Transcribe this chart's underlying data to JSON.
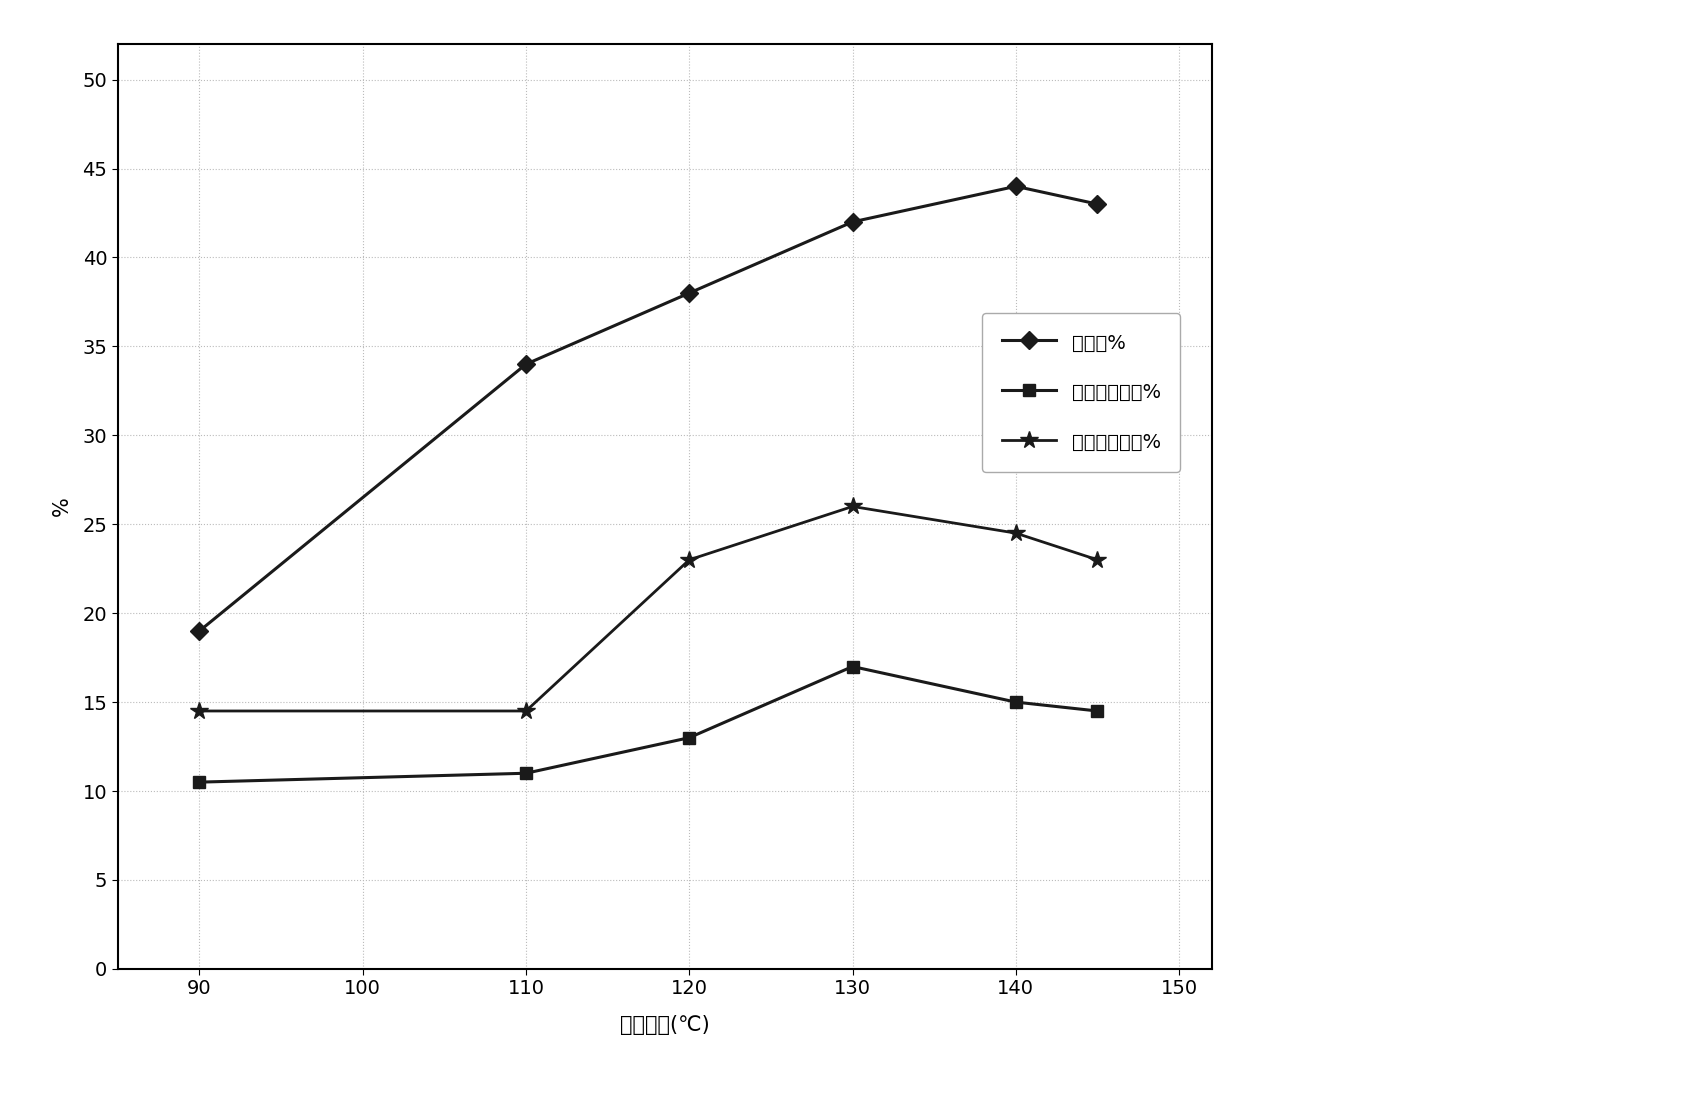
{
  "x": [
    90,
    110,
    120,
    130,
    140,
    145
  ],
  "conversion": [
    19,
    34,
    38,
    42,
    44,
    43
  ],
  "alcohol_sel": [
    10.5,
    11,
    13,
    17,
    15,
    14.5
  ],
  "ketone_sel": [
    14.5,
    14.5,
    23,
    26,
    24.5,
    23
  ],
  "xlabel": "反应温度(℃)",
  "ylabel": "%",
  "xlim": [
    85,
    152
  ],
  "ylim": [
    0,
    52
  ],
  "xticks": [
    90,
    100,
    110,
    120,
    130,
    140,
    150
  ],
  "yticks": [
    0,
    5,
    10,
    15,
    20,
    25,
    30,
    35,
    40,
    45,
    50
  ],
  "legend_conversion": "转化率%",
  "legend_alcohol": "环己醇选择性%",
  "legend_ketone": "环己酮选择性%",
  "line_color": "#1a1a1a",
  "background_color": "#ffffff",
  "plot_bg_color": "#ffffff",
  "grid_color": "#bbbbbb",
  "axis_label_fontsize": 15,
  "tick_fontsize": 14,
  "legend_fontsize": 14
}
